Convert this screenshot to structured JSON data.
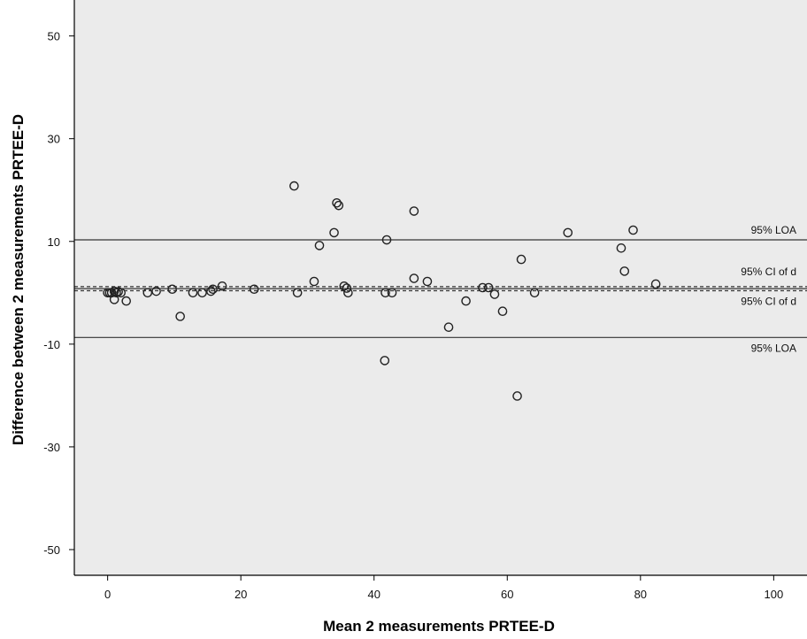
{
  "chart_data": {
    "type": "scatter",
    "title": "",
    "xlabel": "Mean 2 measurements PRTEE-D",
    "ylabel": "Difference between 2 measurements PRTEE-D",
    "xlim": [
      -5,
      105
    ],
    "ylim": [
      -55,
      57
    ],
    "xticks": [
      0,
      20,
      40,
      60,
      80,
      100
    ],
    "yticks": [
      50,
      30,
      10,
      -10,
      -30,
      -50
    ],
    "grid": false,
    "plot_background": "#ebebeb",
    "marker": "open-circle",
    "reference_lines": [
      {
        "y": 10.3,
        "label": "95% LOA",
        "style": "solid"
      },
      {
        "y": 1.2,
        "label": "95% CI of d",
        "style": "dashed"
      },
      {
        "y": 0.8,
        "label": "",
        "style": "solid"
      },
      {
        "y": 0.4,
        "label": "95% CI of d",
        "style": "dashed"
      },
      {
        "y": -8.7,
        "label": "95% LOA",
        "style": "solid"
      }
    ],
    "points": [
      {
        "x": 0,
        "y": 0
      },
      {
        "x": 0.3,
        "y": 0
      },
      {
        "x": 0.6,
        "y": 0
      },
      {
        "x": 1,
        "y": 0.3
      },
      {
        "x": 1.3,
        "y": 0
      },
      {
        "x": 1.6,
        "y": 0.2
      },
      {
        "x": 1,
        "y": -1.3
      },
      {
        "x": 2,
        "y": 0
      },
      {
        "x": 2.8,
        "y": -1.6
      },
      {
        "x": 6,
        "y": 0
      },
      {
        "x": 7.3,
        "y": 0.3
      },
      {
        "x": 9.7,
        "y": 0.7
      },
      {
        "x": 10.9,
        "y": -4.6
      },
      {
        "x": 12.8,
        "y": 0
      },
      {
        "x": 14.2,
        "y": 0
      },
      {
        "x": 15.5,
        "y": 0.3
      },
      {
        "x": 15.8,
        "y": 0.7
      },
      {
        "x": 17.2,
        "y": 1.3
      },
      {
        "x": 22,
        "y": 0.7
      },
      {
        "x": 28,
        "y": 20.8
      },
      {
        "x": 28.5,
        "y": 0
      },
      {
        "x": 31,
        "y": 2.2
      },
      {
        "x": 31.8,
        "y": 9.2
      },
      {
        "x": 34,
        "y": 11.7
      },
      {
        "x": 34.4,
        "y": 17.5
      },
      {
        "x": 34.7,
        "y": 17
      },
      {
        "x": 35.5,
        "y": 1.3
      },
      {
        "x": 35.9,
        "y": 0.9
      },
      {
        "x": 36.1,
        "y": 0
      },
      {
        "x": 41.7,
        "y": 0
      },
      {
        "x": 41.9,
        "y": 10.3
      },
      {
        "x": 41.6,
        "y": -13.2
      },
      {
        "x": 42.7,
        "y": 0
      },
      {
        "x": 46,
        "y": 2.8
      },
      {
        "x": 46,
        "y": 15.9
      },
      {
        "x": 48,
        "y": 2.2
      },
      {
        "x": 51.2,
        "y": -6.7
      },
      {
        "x": 53.8,
        "y": -1.6
      },
      {
        "x": 56.3,
        "y": 1
      },
      {
        "x": 57.2,
        "y": 1
      },
      {
        "x": 58.1,
        "y": -0.3
      },
      {
        "x": 59.3,
        "y": -3.6
      },
      {
        "x": 61.5,
        "y": -20.1
      },
      {
        "x": 62.1,
        "y": 6.5
      },
      {
        "x": 64.1,
        "y": 0
      },
      {
        "x": 69.1,
        "y": 11.7
      },
      {
        "x": 77.1,
        "y": 8.7
      },
      {
        "x": 77.6,
        "y": 4.2
      },
      {
        "x": 78.9,
        "y": 12.2
      },
      {
        "x": 82.3,
        "y": 1.7
      }
    ]
  }
}
